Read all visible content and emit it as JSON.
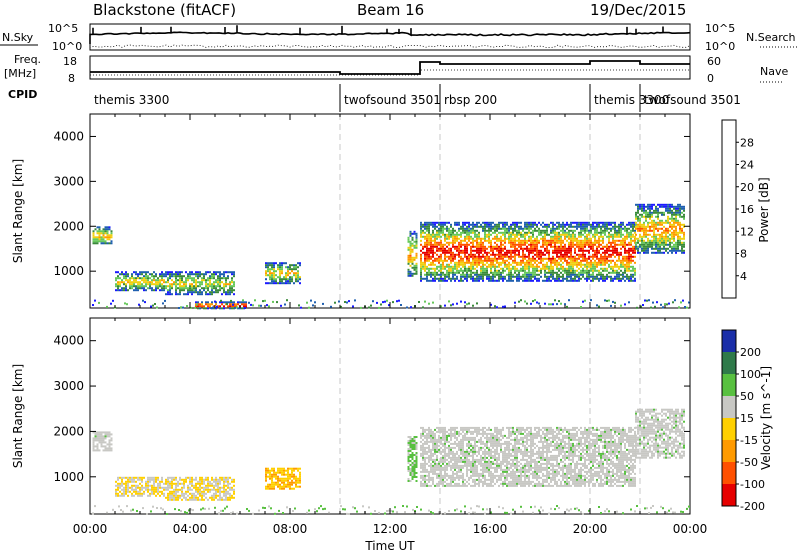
{
  "header": {
    "station": "Blackstone (fitACF)",
    "beam": "Beam 16",
    "date": "19/Dec/2015"
  },
  "top_panels": {
    "nsky_label": "N.Sky",
    "nsky_ticks": [
      "10^5",
      "10^0"
    ],
    "nsearch_label": "N.Search",
    "nsearch_ticks": [
      "10^5",
      "10^0"
    ],
    "freq_label": "Freq.",
    "freq_unit": "[MHz]",
    "freq_ticks": [
      "18",
      "8"
    ],
    "nave_label": "Nave",
    "nave_ticks": [
      "60",
      "0"
    ],
    "cpid_label": "CPID",
    "cpid_segments": [
      {
        "name": "themis 3300",
        "start": 0.0
      },
      {
        "name": "twofsound 3501",
        "start": 10.0
      },
      {
        "name": "rbsp 200",
        "start": 14.0
      },
      {
        "name": "themis 3300",
        "start": 20.0
      },
      {
        "name": "twofsound 3501",
        "start": 22.0
      }
    ]
  },
  "chart_data": [
    {
      "type": "heatmap",
      "quantity": "Power",
      "xlabel": "",
      "ylabel": "Slant Range [km]",
      "xlim": [
        0,
        24
      ],
      "ylim": [
        180,
        4500
      ],
      "yticks": [
        "1000",
        "2000",
        "3000",
        "4000"
      ],
      "colorbar_label": "Power [dB]",
      "colorbar_ticks": [
        "4",
        "8",
        "12",
        "16",
        "20",
        "24",
        "28"
      ],
      "colorbar_range": [
        0,
        32
      ],
      "colors": [
        "#1a1aff",
        "#1f5fb0",
        "#3a8a3a",
        "#66c85a",
        "#f0d010",
        "#ff9a00",
        "#ff5000",
        "#e60000"
      ],
      "echo_regions": [
        {
          "t": [
            0.1,
            0.9
          ],
          "r": [
            1600,
            2000
          ],
          "level": 0.55
        },
        {
          "t": [
            1.0,
            3.0
          ],
          "r": [
            580,
            1000
          ],
          "level": 0.5
        },
        {
          "t": [
            3.0,
            5.8
          ],
          "r": [
            500,
            1000
          ],
          "level": 0.45
        },
        {
          "t": [
            7.0,
            8.4
          ],
          "r": [
            750,
            1200
          ],
          "level": 0.5
        },
        {
          "t": [
            4.2,
            6.2
          ],
          "r": [
            190,
            330
          ],
          "level": 0.95
        },
        {
          "t": [
            12.7,
            13.1
          ],
          "r": [
            900,
            1900
          ],
          "level": 0.6
        },
        {
          "t": [
            13.2,
            21.8
          ],
          "r": [
            800,
            2100
          ],
          "level": 0.85
        },
        {
          "t": [
            21.8,
            23.8
          ],
          "r": [
            1400,
            2500
          ],
          "level": 0.6
        }
      ]
    },
    {
      "type": "heatmap",
      "quantity": "Velocity",
      "xlabel": "Time UT",
      "ylabel": "Slant Range [km]",
      "xlim": [
        0,
        24
      ],
      "ylim": [
        180,
        4500
      ],
      "xticks": [
        "00:00",
        "04:00",
        "08:00",
        "12:00",
        "16:00",
        "20:00",
        "00:00"
      ],
      "yticks": [
        "1000",
        "2000",
        "3000",
        "4000"
      ],
      "colorbar_label": "Velocity [m s^-1]",
      "colorbar_ticks": [
        "200",
        "100",
        "50",
        "15",
        "-15",
        "-50",
        "-100",
        "-200"
      ],
      "colors": [
        "#1a2ea8",
        "#2f7a4a",
        "#58c040",
        "#c8c8c4",
        "#ffd000",
        "#ff9a00",
        "#ff5000",
        "#e60000"
      ],
      "echo_regions": [
        {
          "t": [
            0.1,
            0.9
          ],
          "r": [
            1600,
            2000
          ],
          "class": "ground"
        },
        {
          "t": [
            1.0,
            3.0
          ],
          "r": [
            580,
            1000
          ],
          "class": "mixed"
        },
        {
          "t": [
            3.0,
            5.8
          ],
          "r": [
            500,
            1000
          ],
          "class": "mixed"
        },
        {
          "t": [
            7.0,
            8.4
          ],
          "r": [
            750,
            1200
          ],
          "class": "negative"
        },
        {
          "t": [
            12.7,
            13.1
          ],
          "r": [
            900,
            1900
          ],
          "class": "positive"
        },
        {
          "t": [
            13.2,
            21.8
          ],
          "r": [
            800,
            2100
          ],
          "class": "ground"
        },
        {
          "t": [
            21.8,
            23.8
          ],
          "r": [
            1400,
            2500
          ],
          "class": "ground"
        }
      ]
    }
  ]
}
